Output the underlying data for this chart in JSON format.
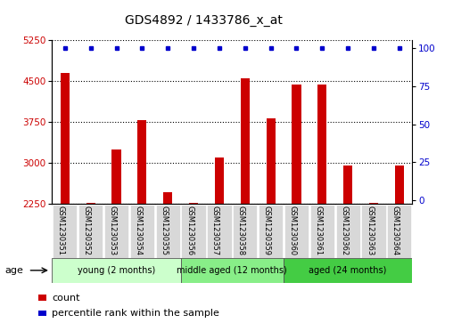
{
  "title": "GDS4892 / 1433786_x_at",
  "samples": [
    "GSM1230351",
    "GSM1230352",
    "GSM1230353",
    "GSM1230354",
    "GSM1230355",
    "GSM1230356",
    "GSM1230357",
    "GSM1230358",
    "GSM1230359",
    "GSM1230360",
    "GSM1230361",
    "GSM1230362",
    "GSM1230363",
    "GSM1230364"
  ],
  "counts": [
    4650,
    2265,
    3250,
    3780,
    2450,
    2260,
    3100,
    4560,
    3820,
    4440,
    4430,
    2950,
    2260,
    2950
  ],
  "percentiles": [
    100,
    100,
    100,
    100,
    100,
    100,
    100,
    100,
    100,
    100,
    100,
    100,
    100,
    100
  ],
  "ymin": 2250,
  "ymax": 5250,
  "yticks": [
    2250,
    3000,
    3750,
    4500,
    5250
  ],
  "y2ticks": [
    0,
    25,
    50,
    75,
    100
  ],
  "bar_color": "#cc0000",
  "dot_color": "#0000cc",
  "groups": [
    {
      "label": "young (2 months)",
      "start": 0,
      "end": 5,
      "color": "#ccffcc"
    },
    {
      "label": "middle aged (12 months)",
      "start": 5,
      "end": 9,
      "color": "#88ee88"
    },
    {
      "label": "aged (24 months)",
      "start": 9,
      "end": 14,
      "color": "#44cc44"
    }
  ],
  "xlabel_age": "age",
  "legend_count_label": "count",
  "legend_pct_label": "percentile rank within the sample",
  "title_fontsize": 10,
  "tick_fontsize": 7.5,
  "label_fontsize": 8
}
